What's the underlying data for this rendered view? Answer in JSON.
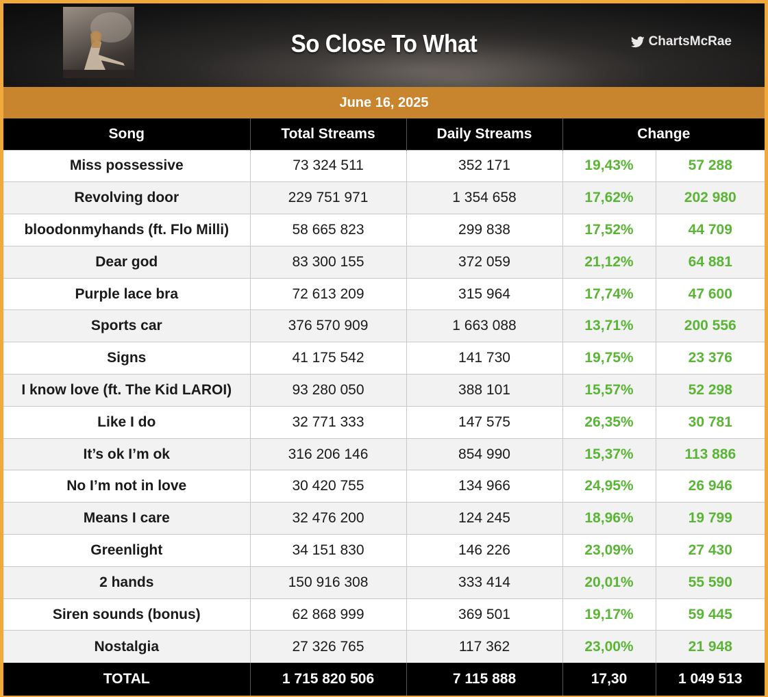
{
  "header": {
    "title": "So Close To What",
    "handle": "ChartsMcRae"
  },
  "date": "June 16, 2025",
  "columns": {
    "song": "Song",
    "total": "Total Streams",
    "daily": "Daily Streams",
    "change": "Change"
  },
  "rows": [
    {
      "song": "Miss possessive",
      "total": "73 324 511",
      "daily": "352 171",
      "pct": "19,43%",
      "change": "57 288"
    },
    {
      "song": "Revolving door",
      "total": "229 751 971",
      "daily": "1 354 658",
      "pct": "17,62%",
      "change": "202 980"
    },
    {
      "song": "bloodonmyhands (ft. Flo Milli)",
      "total": "58 665 823",
      "daily": "299 838",
      "pct": "17,52%",
      "change": "44 709"
    },
    {
      "song": "Dear god",
      "total": "83 300 155",
      "daily": "372 059",
      "pct": "21,12%",
      "change": "64 881"
    },
    {
      "song": "Purple lace bra",
      "total": "72 613 209",
      "daily": "315 964",
      "pct": "17,74%",
      "change": "47 600"
    },
    {
      "song": "Sports car",
      "total": "376 570 909",
      "daily": "1 663 088",
      "pct": "13,71%",
      "change": "200 556"
    },
    {
      "song": "Signs",
      "total": "41 175 542",
      "daily": "141 730",
      "pct": "19,75%",
      "change": "23 376"
    },
    {
      "song": "I know love (ft. The Kid LAROI)",
      "total": "93 280 050",
      "daily": "388 101",
      "pct": "15,57%",
      "change": "52 298"
    },
    {
      "song": "Like I do",
      "total": "32 771 333",
      "daily": "147 575",
      "pct": "26,35%",
      "change": "30 781"
    },
    {
      "song": "It’s ok I’m ok",
      "total": "316 206 146",
      "daily": "854 990",
      "pct": "15,37%",
      "change": "113 886"
    },
    {
      "song": "No I’m not in love",
      "total": "30 420 755",
      "daily": "134 966",
      "pct": "24,95%",
      "change": "26 946"
    },
    {
      "song": "Means I care",
      "total": "32 476 200",
      "daily": "124 245",
      "pct": "18,96%",
      "change": "19 799"
    },
    {
      "song": "Greenlight",
      "total": "34 151 830",
      "daily": "146 226",
      "pct": "23,09%",
      "change": "27 430"
    },
    {
      "song": "2 hands",
      "total": "150 916 308",
      "daily": "333 414",
      "pct": "20,01%",
      "change": "55 590"
    },
    {
      "song": "Siren sounds (bonus)",
      "total": "62 868 999",
      "daily": "369 501",
      "pct": "19,17%",
      "change": "59 445"
    },
    {
      "song": "Nostalgia",
      "total": "27 326 765",
      "daily": "117 362",
      "pct": "23,00%",
      "change": "21 948"
    }
  ],
  "total": {
    "label": "TOTAL",
    "total": "1 715 820 506",
    "daily": "7 115 888",
    "pct": "17,30",
    "change": "1 049 513"
  },
  "colors": {
    "frame": "#f2a93b",
    "date_bar": "#c9852e",
    "header_row": "#000000",
    "positive": "#5ab536"
  },
  "icons": {
    "handle": "twitter-bird-icon"
  }
}
